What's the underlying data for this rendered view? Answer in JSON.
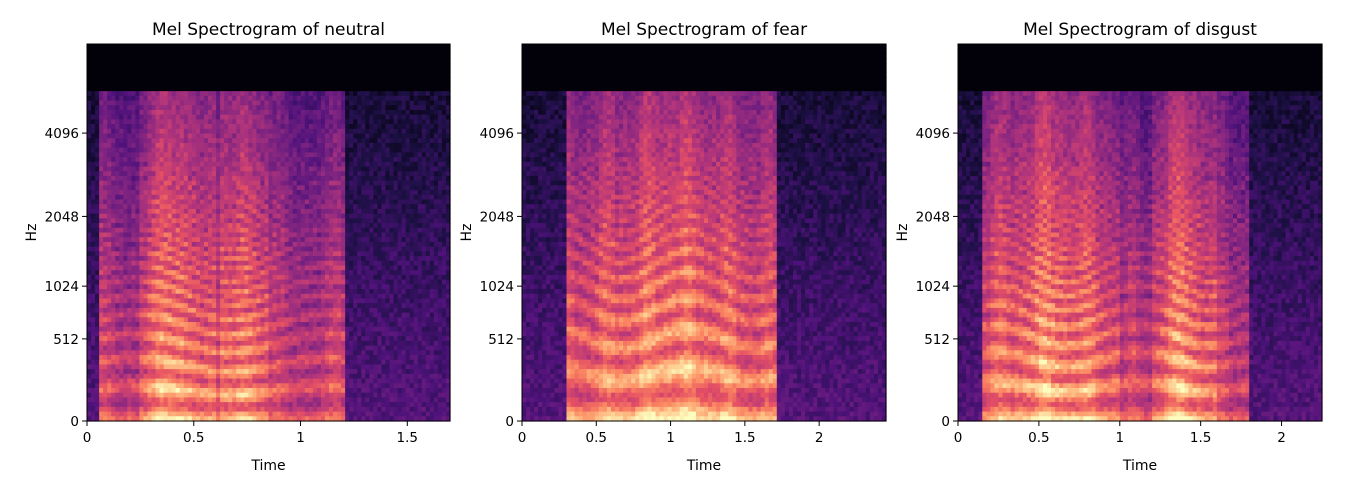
{
  "chart_data": [
    {
      "type": "heatmap",
      "title": "Mel Spectrogram of neutral",
      "xlabel": "Time",
      "ylabel": "Hz",
      "xlim": [
        0,
        1.7
      ],
      "xticks": [
        0,
        0.5,
        1,
        1.5
      ],
      "xtick_labels": [
        "0",
        "0.5",
        "1",
        "1.5"
      ],
      "yscale": "mel",
      "yticks": [
        0,
        512,
        1024,
        2048,
        4096
      ],
      "ytick_labels": [
        "0",
        "512",
        "1024",
        "2048",
        "4096"
      ],
      "colormap": "magma",
      "voiced_segments": [
        [
          0.05,
          1.2
        ]
      ],
      "harmonic_f0_hz": 160,
      "energy_bursts": [
        [
          0.25,
          0.6
        ],
        [
          0.62,
          0.85
        ]
      ]
    },
    {
      "type": "heatmap",
      "title": "Mel Spectrogram of fear",
      "xlabel": "Time",
      "ylabel": "Hz",
      "xlim": [
        0,
        2.45
      ],
      "xticks": [
        0,
        0.5,
        1,
        1.5,
        2
      ],
      "xtick_labels": [
        "0",
        "0.5",
        "1",
        "1.5",
        "2"
      ],
      "yscale": "mel",
      "yticks": [
        0,
        512,
        1024,
        2048,
        4096
      ],
      "ytick_labels": [
        "0",
        "512",
        "1024",
        "2048",
        "4096"
      ],
      "colormap": "magma",
      "voiced_segments": [
        [
          0.3,
          1.72
        ]
      ],
      "harmonic_f0_hz": 260,
      "energy_bursts": [
        [
          0.3,
          1.72
        ]
      ]
    },
    {
      "type": "heatmap",
      "title": "Mel Spectrogram of disgust",
      "xlabel": "Time",
      "ylabel": "Hz",
      "xlim": [
        0,
        2.25
      ],
      "xticks": [
        0,
        0.5,
        1,
        1.5,
        2
      ],
      "xtick_labels": [
        "0",
        "0.5",
        "1",
        "1.5",
        "2"
      ],
      "yscale": "mel",
      "yticks": [
        0,
        512,
        1024,
        2048,
        4096
      ],
      "ytick_labels": [
        "0",
        "512",
        "1024",
        "2048",
        "4096"
      ],
      "colormap": "magma",
      "voiced_segments": [
        [
          0.15,
          1.8
        ]
      ],
      "harmonic_f0_hz": 180,
      "energy_bursts": [
        [
          0.15,
          1.0
        ],
        [
          1.2,
          1.6
        ]
      ]
    }
  ]
}
